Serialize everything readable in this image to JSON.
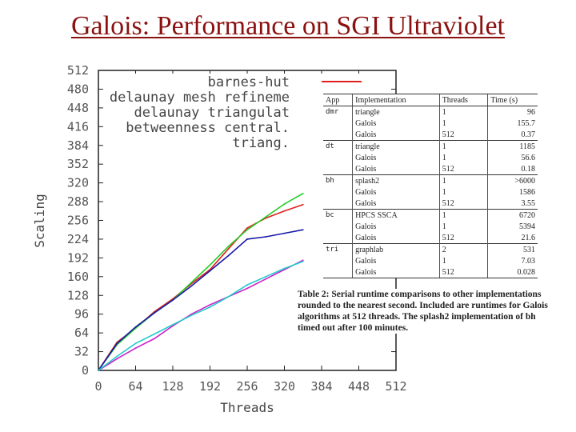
{
  "slide": {
    "title": "Galois: Performance on SGI Ultraviolet"
  },
  "chart_data": {
    "type": "line",
    "xlabel": "Threads",
    "ylabel": "Scaling",
    "xlim": [
      0,
      512
    ],
    "ylim": [
      0,
      512
    ],
    "xticks": [
      0,
      64,
      128,
      192,
      256,
      320,
      384,
      448,
      512
    ],
    "yticks": [
      0,
      32,
      64,
      96,
      128,
      160,
      192,
      224,
      256,
      288,
      320,
      352,
      384,
      416,
      448,
      480,
      512
    ],
    "series": [
      {
        "name": "barnes-hut",
        "color": "#e02020",
        "x": [
          0,
          32,
          64,
          96,
          128,
          160,
          192,
          224,
          256,
          288,
          320,
          352
        ],
        "y": [
          0,
          48,
          72,
          100,
          122,
          148,
          172,
          208,
          243,
          260,
          272,
          283
        ]
      },
      {
        "name": "delaunay mesh refinement",
        "color": "#22cc22",
        "x": [
          0,
          32,
          64,
          96,
          128,
          160,
          192,
          224,
          256,
          288,
          320,
          352
        ],
        "y": [
          0,
          44,
          72,
          98,
          120,
          150,
          180,
          212,
          240,
          262,
          284,
          302
        ]
      },
      {
        "name": "delaunay triangulation",
        "color": "#1a1aa8",
        "x": [
          0,
          32,
          64,
          96,
          128,
          160,
          192,
          224,
          256,
          288,
          320,
          352
        ],
        "y": [
          0,
          46,
          74,
          98,
          120,
          144,
          170,
          196,
          224,
          228,
          234,
          240
        ]
      },
      {
        "name": "betweenness centrality",
        "color": "#cc22cc",
        "x": [
          0,
          32,
          64,
          96,
          128,
          160,
          192,
          224,
          256,
          288,
          320,
          352
        ],
        "y": [
          0,
          20,
          38,
          54,
          76,
          96,
          112,
          126,
          140,
          156,
          172,
          188
        ]
      },
      {
        "name": "triangles",
        "color": "#22cccc",
        "x": [
          0,
          32,
          64,
          96,
          128,
          160,
          192,
          224,
          256,
          288,
          320,
          352
        ],
        "y": [
          0,
          24,
          46,
          62,
          78,
          94,
          108,
          126,
          146,
          160,
          174,
          186
        ]
      }
    ],
    "legend_labels": [
      "barnes-hut",
      "delaunay mesh refineme",
      "delaunay triangulat",
      "betweenness central.",
      "triang."
    ]
  },
  "table": {
    "headers": [
      "App",
      "Implementation",
      "Threads",
      "Time (s)"
    ],
    "rows": [
      {
        "app": "dmr",
        "impl": "triangle",
        "threads": "1",
        "time": "96"
      },
      {
        "app": "",
        "impl": "Galois",
        "threads": "1",
        "time": "155.7"
      },
      {
        "app": "",
        "impl": "Galois",
        "threads": "512",
        "time": "0.37"
      },
      {
        "app": "dt",
        "impl": "triangle",
        "threads": "1",
        "time": "1185"
      },
      {
        "app": "",
        "impl": "Galois",
        "threads": "1",
        "time": "56.6"
      },
      {
        "app": "",
        "impl": "Galois",
        "threads": "512",
        "time": "0.18"
      },
      {
        "app": "bh",
        "impl": "splash2",
        "threads": "1",
        "time": ">6000"
      },
      {
        "app": "",
        "impl": "Galois",
        "threads": "1",
        "time": "1586"
      },
      {
        "app": "",
        "impl": "Galois",
        "threads": "512",
        "time": "3.55"
      },
      {
        "app": "bc",
        "impl": "HPCS SSCA",
        "threads": "1",
        "time": "6720"
      },
      {
        "app": "",
        "impl": "Galois",
        "threads": "1",
        "time": "5394"
      },
      {
        "app": "",
        "impl": "Galois",
        "threads": "512",
        "time": "21.6"
      },
      {
        "app": "tri",
        "impl": "graphlab",
        "threads": "2",
        "time": "531"
      },
      {
        "app": "",
        "impl": "Galois",
        "threads": "1",
        "time": "7.03"
      },
      {
        "app": "",
        "impl": "Galois",
        "threads": "512",
        "time": "0.028"
      }
    ],
    "caption": "Table 2: Serial runtime comparisons to other implementations rounded to the nearest second. Included are runtimes for Galois algorithms at 512 threads. The splash2 implementation of bh timed out after 100 minutes."
  }
}
